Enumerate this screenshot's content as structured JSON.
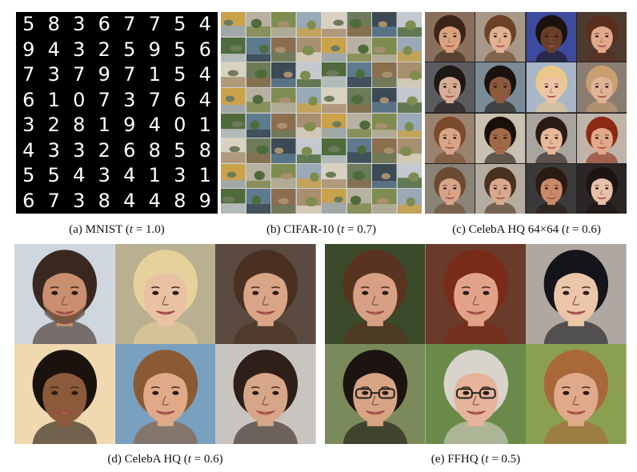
{
  "mnist": {
    "digits": [
      [
        "5",
        "8",
        "3",
        "6",
        "7",
        "7",
        "5",
        "4"
      ],
      [
        "9",
        "4",
        "3",
        "2",
        "5",
        "9",
        "5",
        "6"
      ],
      [
        "7",
        "3",
        "7",
        "9",
        "7",
        "1",
        "5",
        "4"
      ],
      [
        "6",
        "1",
        "0",
        "7",
        "3",
        "7",
        "6",
        "4"
      ],
      [
        "3",
        "2",
        "8",
        "1",
        "9",
        "4",
        "0",
        "1"
      ],
      [
        "4",
        "3",
        "3",
        "2",
        "6",
        "8",
        "5",
        "8"
      ],
      [
        "5",
        "5",
        "4",
        "3",
        "4",
        "1",
        "3",
        "1"
      ],
      [
        "6",
        "7",
        "3",
        "8",
        "4",
        "4",
        "8",
        "9"
      ]
    ],
    "caption_prefix": "(a) MNIST (",
    "caption_var": "t",
    "caption_suffix": " = 1.0)"
  },
  "cifar": {
    "caption_prefix": "(b) CIFAR-10 (",
    "caption_var": "t",
    "caption_suffix": " = 0.7)",
    "palette": [
      "#c9a24a",
      "#6d7b5a",
      "#8a6e4e",
      "#9aa9b8",
      "#4f6b3c",
      "#b8b0a0",
      "#3c4a55",
      "#a88f70",
      "#d9d2c2",
      "#5e7a8f",
      "#7f8c4f",
      "#c4c9cf"
    ]
  },
  "celeba64": {
    "caption_prefix": "(c) CelebA HQ 64×64 (",
    "caption_var": "t",
    "caption_suffix": " = 0.6)",
    "faces": [
      {
        "skin": "#d9a27d",
        "hair": "#3b2418",
        "bg": "#8a6f5c"
      },
      {
        "skin": "#e1b193",
        "hair": "#6b4226",
        "bg": "#a89888"
      },
      {
        "skin": "#6a3f2a",
        "hair": "#1b120d",
        "bg": "#3c4aa0"
      },
      {
        "skin": "#dfa98a",
        "hair": "#5a2e1c",
        "bg": "#4f3a30"
      },
      {
        "skin": "#d6ac96",
        "hair": "#1e1814",
        "bg": "#5a5c60"
      },
      {
        "skin": "#8b5a3c",
        "hair": "#1a120c",
        "bg": "#7a8a96"
      },
      {
        "skin": "#eec4a6",
        "hair": "#e8c98a",
        "bg": "#a8b6c8"
      },
      {
        "skin": "#e0b497",
        "hair": "#c8a070",
        "bg": "#8a7c70"
      },
      {
        "skin": "#d9a58a",
        "hair": "#7a4a2a",
        "bg": "#9a8270"
      },
      {
        "skin": "#a06a48",
        "hair": "#1a100a",
        "bg": "#c8c0b0"
      },
      {
        "skin": "#e8b89a",
        "hair": "#2a1a14",
        "bg": "#a8a4a0"
      },
      {
        "skin": "#e2a88c",
        "hair": "#8a2a14",
        "bg": "#c0b4a8"
      },
      {
        "skin": "#d7a488",
        "hair": "#6a4a30",
        "bg": "#8a8478"
      },
      {
        "skin": "#d8a88e",
        "hair": "#4a3020",
        "bg": "#b4aca0"
      },
      {
        "skin": "#c98a6a",
        "hair": "#2a1a12",
        "bg": "#3a3a3a"
      },
      {
        "skin": "#e6c0a8",
        "hair": "#1c1410",
        "bg": "#2a2626"
      }
    ]
  },
  "celebahq": {
    "caption_prefix": "(d) CelebA HQ (",
    "caption_var": "t",
    "caption_suffix": " = 0.6)",
    "faces": [
      {
        "skin": "#c98f6e",
        "hair": "#3a2820",
        "bg": "#cfd6de",
        "beard": true
      },
      {
        "skin": "#e9c2a4",
        "hair": "#e6d09c",
        "bg": "#b8b090",
        "beard": false
      },
      {
        "skin": "#d9a587",
        "hair": "#4a3020",
        "bg": "#5a4a40",
        "beard": false
      },
      {
        "skin": "#8a5a3a",
        "hair": "#1a120c",
        "bg": "#f0d8b0",
        "beard": false
      },
      {
        "skin": "#e0aa88",
        "hair": "#8a5a34",
        "bg": "#7aa0c0",
        "beard": false
      },
      {
        "skin": "#d7a688",
        "hair": "#2e2018",
        "bg": "#c8c4c0",
        "beard": false
      }
    ]
  },
  "ffhq": {
    "caption_prefix": "(e) FFHQ (",
    "caption_var": "t",
    "caption_suffix": " = 0.5)",
    "faces": [
      {
        "skin": "#d7a084",
        "hair": "#5a3220",
        "bg": "#3a4a2a",
        "glasses": false
      },
      {
        "skin": "#e2a288",
        "hair": "#7a2a18",
        "bg": "#6a3a2a",
        "glasses": false
      },
      {
        "skin": "#ecc6a8",
        "hair": "#14141a",
        "bg": "#b0a8a0",
        "glasses": false
      },
      {
        "skin": "#d8a486",
        "hair": "#1c1410",
        "bg": "#7a8a5a",
        "glasses": true
      },
      {
        "skin": "#e6b49a",
        "hair": "#d8d4cc",
        "bg": "#6a8a4a",
        "glasses": true
      },
      {
        "skin": "#e0aa8a",
        "hair": "#a8683a",
        "bg": "#8aa050",
        "glasses": false
      }
    ]
  }
}
